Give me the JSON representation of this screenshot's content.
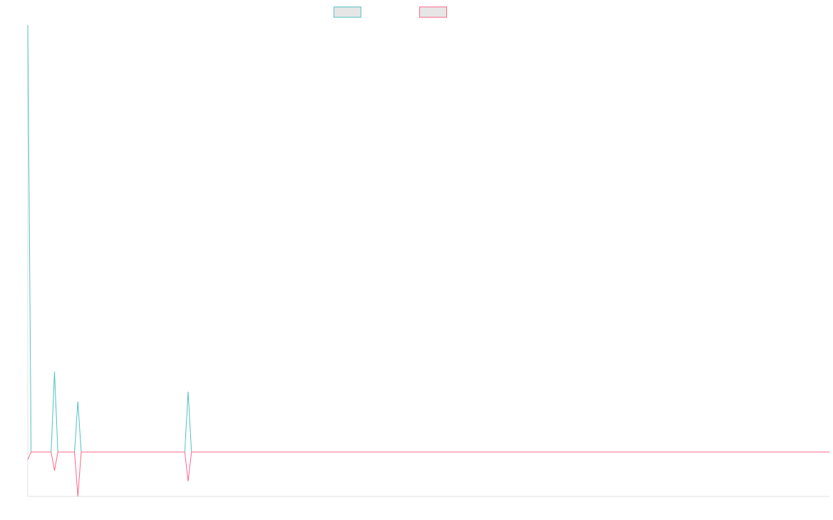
{
  "chart_data": {
    "type": "line",
    "x": [
      0,
      1,
      7,
      8,
      9,
      14,
      15,
      16,
      47,
      48,
      49,
      240
    ],
    "series": [
      {
        "color": "#4bc0c0",
        "values": [
          9.62,
          0,
          0,
          1.81,
          0,
          0,
          1.14,
          0,
          0,
          1.36,
          0,
          0
        ]
      },
      {
        "color": "#ff6384",
        "values": [
          -0.17,
          0,
          0,
          -0.42,
          0,
          0,
          -1,
          0,
          0,
          -0.66,
          0,
          0
        ]
      }
    ],
    "xlim": [
      0,
      240
    ],
    "ylim": [
      -1,
      9.62
    ]
  }
}
